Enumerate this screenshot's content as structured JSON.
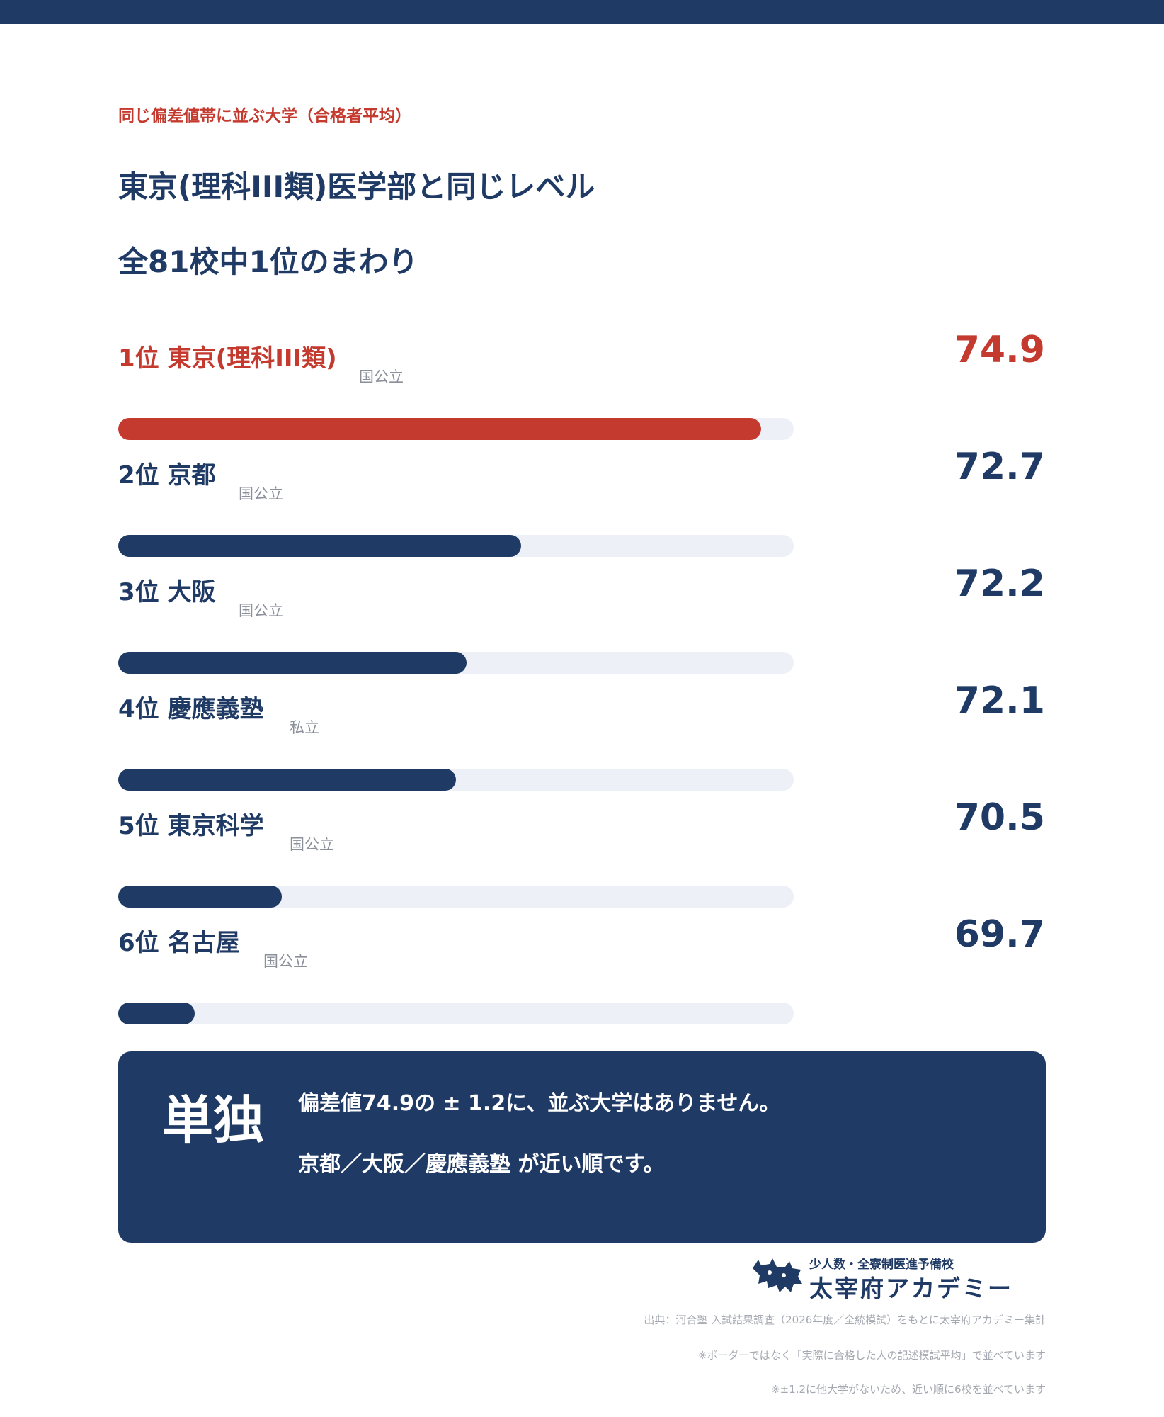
{
  "header": {
    "eyebrow": "同じ偏差値帯に並ぶ大学（合格者平均）",
    "title": "東京(理科III類)医学部と同じレベル",
    "subtitle": "全81校中1位のまわり"
  },
  "colors": {
    "navy": "#1f3a64",
    "accent_red": "#c53a2f",
    "track": "#edf0f6",
    "muted": "#8a8f99"
  },
  "chart_data": {
    "type": "bar",
    "orientation": "horizontal",
    "xlim": [
      69.0,
      75.2
    ],
    "rows": [
      {
        "rank": "1位",
        "name": "東京(理科III類)",
        "type": "国公立",
        "value": 74.9,
        "value_label": "74.9",
        "highlight": true
      },
      {
        "rank": "2位",
        "name": "京都",
        "type": "国公立",
        "value": 72.7,
        "value_label": "72.7",
        "highlight": false
      },
      {
        "rank": "3位",
        "name": "大阪",
        "type": "国公立",
        "value": 72.2,
        "value_label": "72.2",
        "highlight": false
      },
      {
        "rank": "4位",
        "name": "慶應義塾",
        "type": "私立",
        "value": 72.1,
        "value_label": "72.1",
        "highlight": false
      },
      {
        "rank": "5位",
        "name": "東京科学",
        "type": "国公立",
        "value": 70.5,
        "value_label": "70.5",
        "highlight": false
      },
      {
        "rank": "6位",
        "name": "名古屋",
        "type": "国公立",
        "value": 69.7,
        "value_label": "69.7",
        "highlight": false
      }
    ]
  },
  "note": {
    "badge": "単独",
    "line1": "偏差値74.9の ± 1.2に、並ぶ大学はありません。",
    "line2": "京都／大阪／慶應義塾 が近い順です。"
  },
  "logo": {
    "tagline": "少人数・全寮制医進予備校",
    "name": "太宰府アカデミー",
    "icon": "dog-silhouette-icon"
  },
  "footer": {
    "source": "出典：河合塾 入試結果調査（2026年度／全統模試）をもとに太宰府アカデミー集計",
    "note1": "※ボーダーではなく「実際に合格した人の記述模試平均」で並べています",
    "note2": "※±1.2に他大学がないため、近い順に6校を並べています"
  }
}
